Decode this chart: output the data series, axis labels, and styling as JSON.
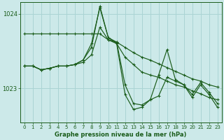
{
  "bg_color": "#cce9e9",
  "grid_color": "#aad4d4",
  "line_color": "#1a5c1a",
  "marker_color": "#1a5c1a",
  "xlabel": "Graphe pression niveau de la mer (hPa)",
  "xlim": [
    -0.5,
    23.5
  ],
  "ylim": [
    1022.55,
    1024.15
  ],
  "yticks": [
    1023,
    1024
  ],
  "xticks": [
    0,
    1,
    2,
    3,
    4,
    5,
    6,
    7,
    8,
    9,
    10,
    11,
    12,
    13,
    14,
    15,
    16,
    17,
    18,
    19,
    20,
    21,
    22,
    23
  ],
  "series": [
    [
      1023.73,
      1023.73,
      1023.73,
      1023.73,
      1023.73,
      1023.73,
      1023.73,
      1023.73,
      1023.73,
      1023.73,
      1023.65,
      1023.62,
      1023.55,
      1023.48,
      1023.42,
      1023.38,
      1023.33,
      1023.28,
      1023.23,
      1023.18,
      1023.13,
      1023.1,
      1023.05,
      1023.02
    ],
    [
      1023.3,
      1023.3,
      1023.25,
      1023.27,
      1023.3,
      1023.3,
      1023.32,
      1023.35,
      1023.45,
      1023.82,
      1023.65,
      1023.6,
      1023.42,
      1023.32,
      1023.22,
      1023.18,
      1023.15,
      1023.1,
      1023.05,
      1023.02,
      1022.97,
      1022.93,
      1022.88,
      1022.85
    ],
    [
      1023.3,
      1023.3,
      1023.25,
      1023.27,
      1023.3,
      1023.3,
      1023.32,
      1023.38,
      1023.55,
      1024.1,
      1023.68,
      1023.62,
      1023.05,
      1022.8,
      1022.78,
      1022.85,
      1022.9,
      1023.15,
      1023.1,
      1023.05,
      1022.92,
      1023.08,
      1022.95,
      1022.8
    ],
    [
      1023.3,
      1023.3,
      1023.25,
      1023.27,
      1023.3,
      1023.3,
      1023.32,
      1023.38,
      1023.6,
      1024.08,
      1023.68,
      1023.6,
      1022.92,
      1022.72,
      1022.75,
      1022.85,
      1023.18,
      1023.52,
      1023.12,
      1023.05,
      1022.88,
      1023.05,
      1022.92,
      1022.75
    ]
  ]
}
